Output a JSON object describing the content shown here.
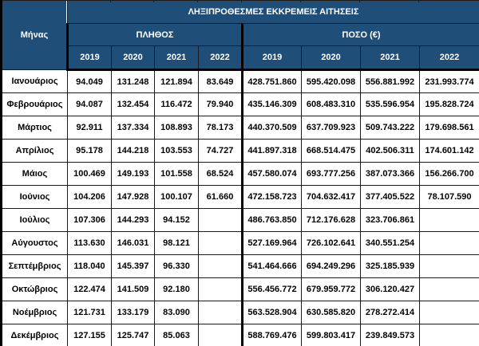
{
  "chart_data": {
    "type": "table",
    "title": "ΛΗΞΙΠΡΟΘΕΣΜΕΣ ΕΚΚΡΕΜΕΙΣ ΑΙΤΗΣΕΙΣ",
    "row_header": "Μήνας",
    "col_groups": [
      {
        "label": "ΠΛΗΘΟΣ",
        "years": [
          "2019",
          "2020",
          "2021",
          "2022"
        ]
      },
      {
        "label": "ΠΟΣΟ (€)",
        "years": [
          "2019",
          "2020",
          "2021",
          "2022"
        ]
      }
    ],
    "rows": [
      {
        "month": "Ιανουάριος",
        "values": [
          "94.049",
          "131.248",
          "121.894",
          "83.649",
          "428.751.860",
          "595.420.098",
          "556.881.992",
          "231.993.774"
        ]
      },
      {
        "month": "Φεβρουάριος",
        "values": [
          "94.087",
          "132.454",
          "116.472",
          "79.940",
          "435.146.309",
          "608.483.310",
          "535.596.954",
          "195.828.724"
        ]
      },
      {
        "month": "Μάρτιος",
        "values": [
          "92.911",
          "137.334",
          "108.893",
          "78.173",
          "440.370.509",
          "637.709.923",
          "509.743.222",
          "179.698.561"
        ]
      },
      {
        "month": "Απρίλιος",
        "values": [
          "95.178",
          "144.218",
          "103.553",
          "74.727",
          "441.897.318",
          "668.514.475",
          "402.506.311",
          "174.601.142"
        ]
      },
      {
        "month": "Μάιος",
        "values": [
          "100.469",
          "149.193",
          "101.558",
          "68.524",
          "457.580.074",
          "693.777.256",
          "387.073.366",
          "156.266.700"
        ]
      },
      {
        "month": "Ιούνιος",
        "values": [
          "104.206",
          "147.928",
          "100.107",
          "61.660",
          "472.158.723",
          "704.632.417",
          "377.405.522",
          "78.107.590"
        ]
      },
      {
        "month": "Ιούλιος",
        "values": [
          "107.306",
          "144.293",
          "94.152",
          "",
          "486.763.850",
          "712.176.628",
          "323.706.861",
          ""
        ]
      },
      {
        "month": "Αύγουστος",
        "values": [
          "113.630",
          "146.031",
          "98.121",
          "",
          "527.169.964",
          "726.102.641",
          "340.551.254",
          ""
        ]
      },
      {
        "month": "Σεπτέμβριος",
        "values": [
          "118.040",
          "145.397",
          "96.330",
          "",
          "541.464.666",
          "694.249.296",
          "325.185.939",
          ""
        ]
      },
      {
        "month": "Οκτώβριος",
        "values": [
          "122.474",
          "141.509",
          "92.180",
          "",
          "556.456.772",
          "679.959.772",
          "306.120.427",
          ""
        ]
      },
      {
        "month": "Νοέμβριος",
        "values": [
          "121.731",
          "133.179",
          "83.090",
          "",
          "563.528.904",
          "630.585.820",
          "278.272.414",
          ""
        ]
      },
      {
        "month": "Δεκέμβριος",
        "values": [
          "127.155",
          "125.747",
          "85.063",
          "",
          "588.769.476",
          "599.803.417",
          "239.849.573",
          ""
        ]
      }
    ]
  },
  "colors": {
    "header_bg": "#1f4e79",
    "header_text": "#ffffff",
    "body_text": "#000000",
    "border": "#000000",
    "body_bg": "#ffffff"
  }
}
